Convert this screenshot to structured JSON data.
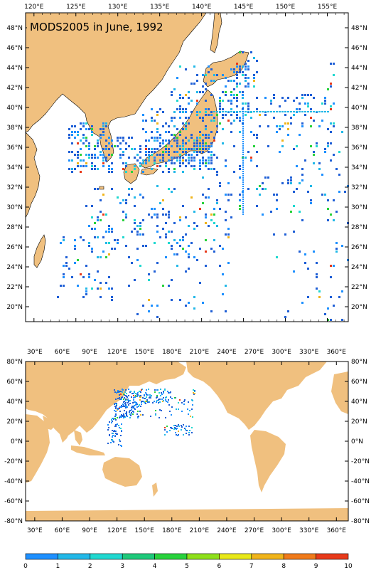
{
  "top_map": {
    "title": "MODS2005 in June, 1992",
    "lon_ticks": [
      "120°E",
      "125°E",
      "130°E",
      "135°E",
      "140°E",
      "145°E",
      "150°E",
      "155°E"
    ],
    "lat_ticks": [
      "48°N",
      "46°N",
      "44°N",
      "42°N",
      "40°N",
      "38°N",
      "36°N",
      "34°N",
      "32°N",
      "30°N",
      "28°N",
      "26°N",
      "24°N",
      "22°N",
      "20°N"
    ],
    "lon_range": [
      119,
      157.5
    ],
    "lat_range": [
      18.5,
      49.5
    ]
  },
  "bottom_map": {
    "lon_ticks": [
      "30°E",
      "60°E",
      "90°E",
      "120°E",
      "150°E",
      "180°E",
      "210°E",
      "240°E",
      "270°E",
      "300°E",
      "330°E",
      "360°E"
    ],
    "lat_ticks": [
      "80°N",
      "60°N",
      "40°N",
      "20°N",
      "0°N",
      "-20°N",
      "-40°N",
      "-60°N",
      "-80°N"
    ],
    "lon_range": [
      20,
      373
    ],
    "lat_range": [
      -80,
      80
    ]
  },
  "colorbar": {
    "labels": [
      "0",
      "1",
      "2",
      "3",
      "4",
      "5",
      "6",
      "7",
      "8",
      "9",
      "10"
    ],
    "colors": [
      "#1f5fd6",
      "#1e90ff",
      "#22b8e8",
      "#20d8d0",
      "#1ec97a",
      "#28d23c",
      "#8ee01a",
      "#e8e818",
      "#f0b41a",
      "#f07a1a",
      "#e83a1a"
    ]
  },
  "colors": {
    "land": "#f0c07f",
    "ocean": "#ffffff"
  }
}
